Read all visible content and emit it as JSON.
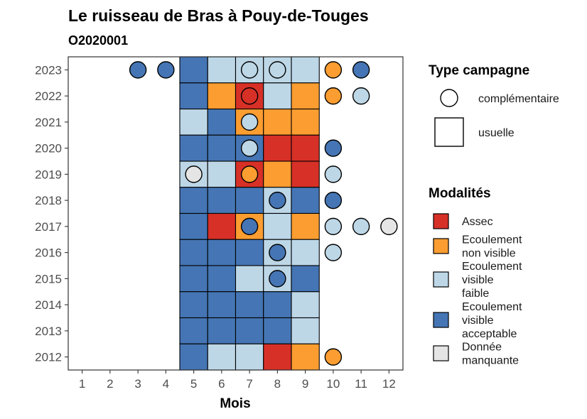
{
  "chart_data": {
    "type": "heatmap",
    "title": "Le ruisseau de Bras à Pouy-de-Touges",
    "subtitle": "O2020001",
    "xlabel": "Mois",
    "ylabel": "",
    "x_ticks": [
      1,
      2,
      3,
      4,
      5,
      6,
      7,
      8,
      9,
      10,
      11,
      12
    ],
    "y_ticks": [
      2012,
      2013,
      2014,
      2015,
      2016,
      2017,
      2018,
      2019,
      2020,
      2021,
      2022,
      2023
    ],
    "xlim": [
      0.5,
      12.5
    ],
    "ylim": [
      2011.5,
      2023.5
    ],
    "grid": false,
    "legend_position": "right",
    "legends": {
      "type_campagne": {
        "title": "Type campagne",
        "items": [
          {
            "key": "complementaire",
            "label": "complémentaire",
            "shape": "circle"
          },
          {
            "key": "usuelle",
            "label": "usuelle",
            "shape": "square"
          }
        ]
      },
      "modalites": {
        "title": "Modalités",
        "items": [
          {
            "key": "A",
            "lines": [
              "Assec"
            ],
            "color": "#d73027"
          },
          {
            "key": "ENV",
            "lines": [
              "Ecoulement",
              "non visible"
            ],
            "color": "#fc9d31"
          },
          {
            "key": "EVF",
            "lines": [
              "Ecoulement",
              "visible",
              "faible"
            ],
            "color": "#bdd7e7"
          },
          {
            "key": "EVA",
            "lines": [
              "Ecoulement",
              "visible",
              "acceptable"
            ],
            "color": "#4575b4"
          },
          {
            "key": "DM",
            "lines": [
              "Donnée",
              "manquante"
            ],
            "color": "#e5e5e5"
          }
        ]
      }
    },
    "usuelle": [
      {
        "year": 2023,
        "values": {
          "5": "EVA",
          "6": "EVF",
          "7": "EVF",
          "8": "EVF",
          "9": "EVF"
        }
      },
      {
        "year": 2022,
        "values": {
          "5": "EVA",
          "6": "ENV",
          "7": "A",
          "8": "EVF",
          "9": "ENV"
        }
      },
      {
        "year": 2021,
        "values": {
          "5": "EVF",
          "6": "EVA",
          "7": "ENV",
          "8": "ENV",
          "9": "ENV"
        }
      },
      {
        "year": 2020,
        "values": {
          "5": "EVA",
          "6": "EVA",
          "7": "EVA",
          "8": "A",
          "9": "A"
        }
      },
      {
        "year": 2019,
        "values": {
          "5": "EVF",
          "6": "EVF",
          "7": "A",
          "8": "ENV",
          "9": "A"
        }
      },
      {
        "year": 2018,
        "values": {
          "5": "EVA",
          "6": "EVA",
          "7": "EVA",
          "8": "EVF",
          "9": "EVA"
        }
      },
      {
        "year": 2017,
        "values": {
          "5": "EVA",
          "6": "A",
          "7": "ENV",
          "8": "EVF",
          "9": "ENV"
        }
      },
      {
        "year": 2016,
        "values": {
          "5": "EVA",
          "6": "EVA",
          "7": "EVA",
          "8": "EVF",
          "9": "EVF"
        }
      },
      {
        "year": 2015,
        "values": {
          "5": "EVA",
          "6": "EVA",
          "7": "EVF",
          "8": "EVF",
          "9": "EVA"
        }
      },
      {
        "year": 2014,
        "values": {
          "5": "EVA",
          "6": "EVA",
          "7": "EVA",
          "8": "EVA",
          "9": "EVF"
        }
      },
      {
        "year": 2013,
        "values": {
          "5": "EVA",
          "6": "EVA",
          "7": "EVA",
          "8": "EVA",
          "9": "EVF"
        }
      },
      {
        "year": 2012,
        "values": {
          "5": "EVA",
          "6": "EVF",
          "7": "EVF",
          "8": "A",
          "9": "ENV"
        }
      }
    ],
    "complementaire": [
      {
        "year": 2023,
        "month": 3,
        "value": "EVA"
      },
      {
        "year": 2023,
        "month": 4,
        "value": "EVA"
      },
      {
        "year": 2023,
        "month": 7,
        "value": "EVF"
      },
      {
        "year": 2023,
        "month": 8,
        "value": "EVF"
      },
      {
        "year": 2023,
        "month": 10,
        "value": "ENV"
      },
      {
        "year": 2023,
        "month": 11,
        "value": "EVA"
      },
      {
        "year": 2022,
        "month": 7,
        "value": "A"
      },
      {
        "year": 2022,
        "month": 10,
        "value": "ENV"
      },
      {
        "year": 2022,
        "month": 11,
        "value": "EVF"
      },
      {
        "year": 2021,
        "month": 7,
        "value": "EVF"
      },
      {
        "year": 2020,
        "month": 7,
        "value": "EVF"
      },
      {
        "year": 2020,
        "month": 10,
        "value": "EVA"
      },
      {
        "year": 2019,
        "month": 5,
        "value": "DM"
      },
      {
        "year": 2019,
        "month": 7,
        "value": "ENV"
      },
      {
        "year": 2019,
        "month": 10,
        "value": "EVF"
      },
      {
        "year": 2018,
        "month": 8,
        "value": "EVA"
      },
      {
        "year": 2018,
        "month": 10,
        "value": "EVA"
      },
      {
        "year": 2017,
        "month": 7,
        "value": "EVA"
      },
      {
        "year": 2017,
        "month": 10,
        "value": "EVF"
      },
      {
        "year": 2017,
        "month": 11,
        "value": "EVF"
      },
      {
        "year": 2017,
        "month": 12,
        "value": "DM"
      },
      {
        "year": 2016,
        "month": 8,
        "value": "EVA"
      },
      {
        "year": 2016,
        "month": 10,
        "value": "EVF"
      },
      {
        "year": 2015,
        "month": 8,
        "value": "EVA"
      },
      {
        "year": 2012,
        "month": 10,
        "value": "ENV"
      }
    ]
  }
}
